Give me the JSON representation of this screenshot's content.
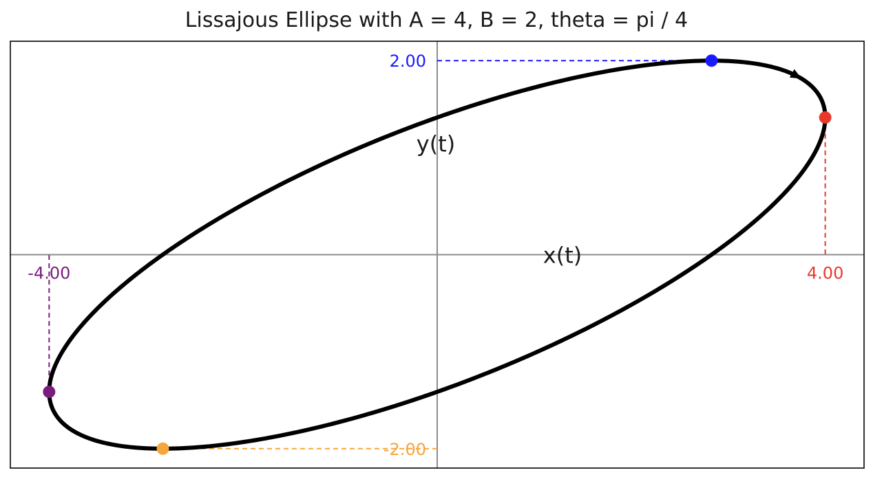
{
  "chart_data": {
    "type": "line",
    "title": "Lissajous Ellipse with A = 4, B = 2, theta = pi / 4",
    "xlabel": "x(t)",
    "ylabel": "y(t)",
    "xlim": [
      -4.4,
      4.4
    ],
    "ylim": [
      -2.2,
      2.2
    ],
    "grid": false,
    "curve": {
      "equation_x": "A*sin(t)",
      "equation_y": "B*sin(t + theta)",
      "A": 4,
      "B": 2,
      "theta": 0.7853981634,
      "color": "#000000"
    },
    "markers": [
      {
        "name": "max-y",
        "x": 2.828,
        "y": 2.0,
        "color": "#1a1aff",
        "label": "2.00",
        "guide": "horizontal"
      },
      {
        "name": "max-x",
        "x": 4.0,
        "y": 1.414,
        "color": "#e8392b",
        "label": "4.00",
        "guide": "vertical"
      },
      {
        "name": "min-x",
        "x": -4.0,
        "y": -1.414,
        "color": "#7b1d7f",
        "label": "-4.00",
        "guide": "vertical"
      },
      {
        "name": "min-y",
        "x": -2.828,
        "y": -2.0,
        "color": "#f5a53a",
        "label": "-2.00",
        "guide": "horizontal"
      }
    ],
    "axes_color": "#8c8c8c"
  }
}
